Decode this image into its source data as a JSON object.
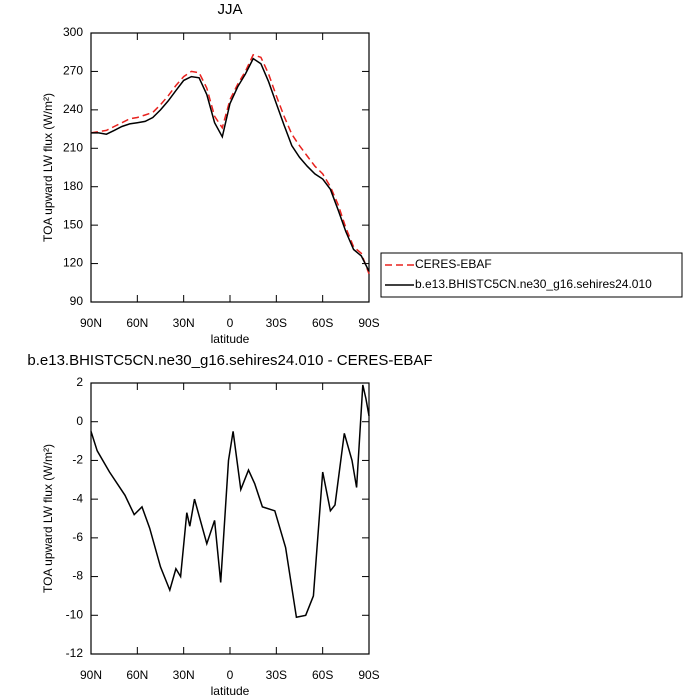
{
  "chart_data": [
    {
      "type": "line",
      "title": "JJA",
      "xlabel": "latitude",
      "ylabel": "TOA upward LW flux (W/m²)",
      "x": [
        90,
        85,
        80,
        75,
        70,
        65,
        60,
        55,
        50,
        45,
        40,
        35,
        30,
        25,
        20,
        15,
        10,
        5,
        0,
        -5,
        -10,
        -15,
        -20,
        -25,
        -30,
        -35,
        -40,
        -45,
        -50,
        -55,
        -60,
        -65,
        -70,
        -75,
        -80,
        -85,
        -90
      ],
      "xlim": [
        90,
        -90
      ],
      "xticks": [
        {
          "value": 90,
          "label": "90N"
        },
        {
          "value": 60,
          "label": "60N"
        },
        {
          "value": 30,
          "label": "30N"
        },
        0,
        {
          "value": -30,
          "label": "30S"
        },
        {
          "value": -60,
          "label": "60S"
        },
        {
          "value": -90,
          "label": "90S"
        }
      ],
      "ylim": [
        90,
        300
      ],
      "yticks": [
        90,
        120,
        150,
        180,
        210,
        240,
        270,
        300
      ],
      "legend": "outside-right",
      "series": [
        {
          "name": "CERES-EBAF",
          "color": "#e8221e",
          "dash": true,
          "values": [
            222,
            223,
            224,
            227,
            230,
            233,
            234,
            236,
            238,
            244,
            251,
            259,
            266,
            270,
            269,
            257,
            235,
            226,
            248,
            260,
            270,
            283,
            281,
            268,
            251,
            235,
            221,
            212,
            204,
            196,
            190,
            180,
            166,
            148,
            133,
            128,
            112
          ]
        },
        {
          "name": "b.e13.BHISTC5CN.ne30_g16.sehires24.010",
          "color": "#000000",
          "dash": false,
          "values": [
            222,
            222,
            221,
            224,
            227,
            229,
            230,
            231,
            234,
            240,
            247,
            255,
            263,
            266,
            265,
            252,
            230,
            219,
            245,
            258,
            268,
            280,
            276,
            262,
            245,
            228,
            212,
            203,
            196,
            190,
            186,
            178,
            162,
            145,
            131,
            126,
            114
          ]
        }
      ]
    },
    {
      "type": "line",
      "title": "b.e13.BHISTC5CN.ne30_g16.sehires24.010 - CERES-EBAF",
      "xlabel": "latitude",
      "ylabel": "TOA upward LW flux (W/m²)",
      "x": [
        90,
        86,
        78,
        68,
        62,
        57,
        52,
        45,
        39,
        35,
        32,
        28,
        26,
        23,
        15,
        10,
        6,
        1,
        -2,
        -7,
        -12,
        -16,
        -21,
        -29,
        -36,
        -43,
        -49,
        -54,
        -60,
        -65,
        -68,
        -74,
        -79,
        -82,
        -86,
        -88,
        -90
      ],
      "xlim": [
        90,
        -90
      ],
      "xticks": [
        {
          "value": 90,
          "label": "90N"
        },
        {
          "value": 60,
          "label": "60N"
        },
        {
          "value": 30,
          "label": "30N"
        },
        0,
        {
          "value": -30,
          "label": "30S"
        },
        {
          "value": -60,
          "label": "60S"
        },
        {
          "value": -90,
          "label": "90S"
        }
      ],
      "ylim": [
        -12,
        2
      ],
      "yticks": [
        -12,
        -10,
        -8,
        -6,
        -4,
        -2,
        0,
        2
      ],
      "series": [
        {
          "name": null,
          "color": "#000000",
          "dash": false,
          "values": [
            -0.5,
            -1.5,
            -2.6,
            -3.8,
            -4.8,
            -4.4,
            -5.5,
            -7.5,
            -8.7,
            -7.6,
            -8.0,
            -4.7,
            -5.4,
            -4.0,
            -6.3,
            -5.1,
            -8.3,
            -2.0,
            -0.5,
            -3.5,
            -2.5,
            -3.2,
            -4.4,
            -4.6,
            -6.5,
            -10.1,
            -10.0,
            -9.0,
            -2.6,
            -4.6,
            -4.3,
            -0.6,
            -2.0,
            -3.4,
            1.9,
            1.2,
            0.3
          ]
        }
      ]
    }
  ]
}
